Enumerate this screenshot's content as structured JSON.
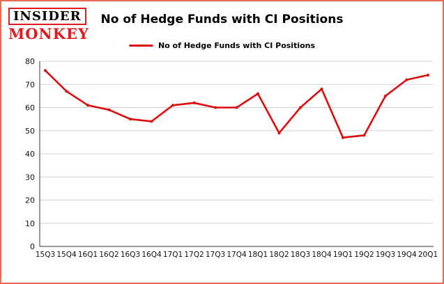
{
  "title": "No of Hedge Funds with CI Positions",
  "logo": {
    "line1": "INSIDER",
    "line2": "MONKEY"
  },
  "legend": {
    "label": "No of Hedge Funds with CI Positions"
  },
  "colors": {
    "line": "#dc0d0d",
    "frame_border": "#ec6a4f",
    "logo_red": "#e01a1d",
    "grid": "#d4d4d4",
    "axis": "#333333"
  },
  "chart_data": {
    "type": "line",
    "title": "No of Hedge Funds with CI Positions",
    "categories": [
      "15Q3",
      "15Q4",
      "16Q1",
      "16Q2",
      "16Q3",
      "16Q4",
      "17Q1",
      "17Q2",
      "17Q3",
      "17Q4",
      "18Q1",
      "18Q2",
      "18Q3",
      "18Q4",
      "19Q1",
      "19Q2",
      "19Q3",
      "19Q4",
      "20Q1"
    ],
    "values": [
      76,
      67,
      61,
      59,
      55,
      54,
      61,
      62,
      60,
      60,
      66,
      49,
      60,
      68,
      47,
      48,
      65,
      72,
      74
    ],
    "series_name": "No of Hedge Funds with CI Positions",
    "xlabel": "",
    "ylabel": "",
    "ylim": [
      0,
      80
    ],
    "yticks": [
      0,
      10,
      20,
      30,
      40,
      50,
      60,
      70,
      80
    ],
    "grid": true,
    "legend_position": "top"
  }
}
